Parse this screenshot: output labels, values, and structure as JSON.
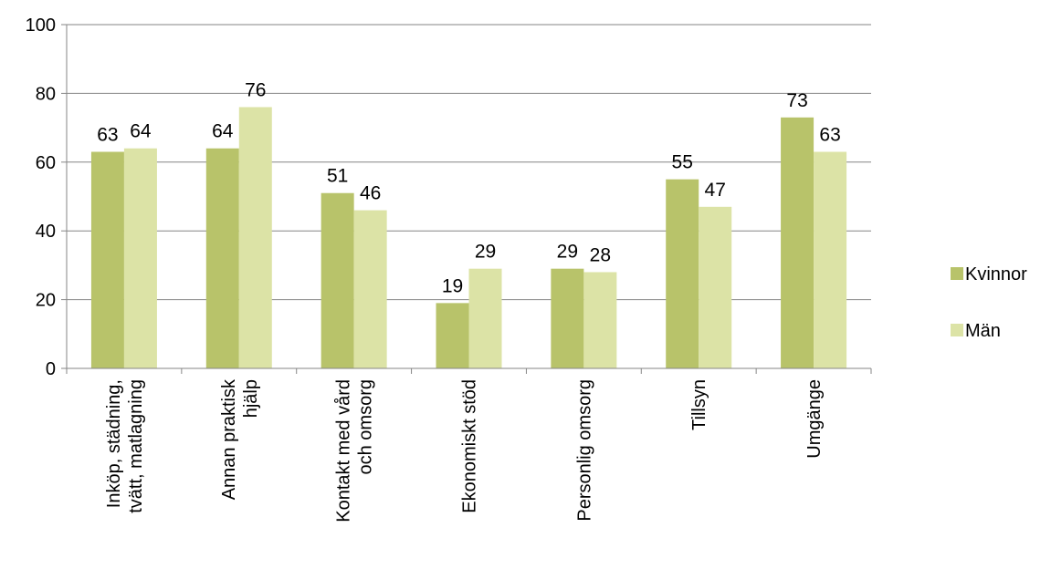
{
  "chart_data": {
    "type": "bar",
    "title": "",
    "xlabel": "",
    "ylabel": "",
    "ylim": [
      0,
      100
    ],
    "yticks": [
      0,
      20,
      40,
      60,
      80,
      100
    ],
    "grid": true,
    "legend_position": "right",
    "categories": [
      [
        "Inköp, städning,",
        "tvätt, matlagning"
      ],
      [
        "Annan praktisk",
        "hjälp"
      ],
      [
        "Kontakt med vård",
        "och omsorg"
      ],
      [
        "Ekonomiskt stöd"
      ],
      [
        "Personlig omsorg"
      ],
      [
        "Tillsyn"
      ],
      [
        "Umgänge"
      ]
    ],
    "series": [
      {
        "name": "Kvinnor",
        "color": "#b8c36a",
        "values": [
          63,
          64,
          51,
          19,
          29,
          55,
          73
        ]
      },
      {
        "name": "Män",
        "color": "#dce3a6",
        "values": [
          64,
          76,
          46,
          29,
          28,
          47,
          63
        ]
      }
    ]
  }
}
